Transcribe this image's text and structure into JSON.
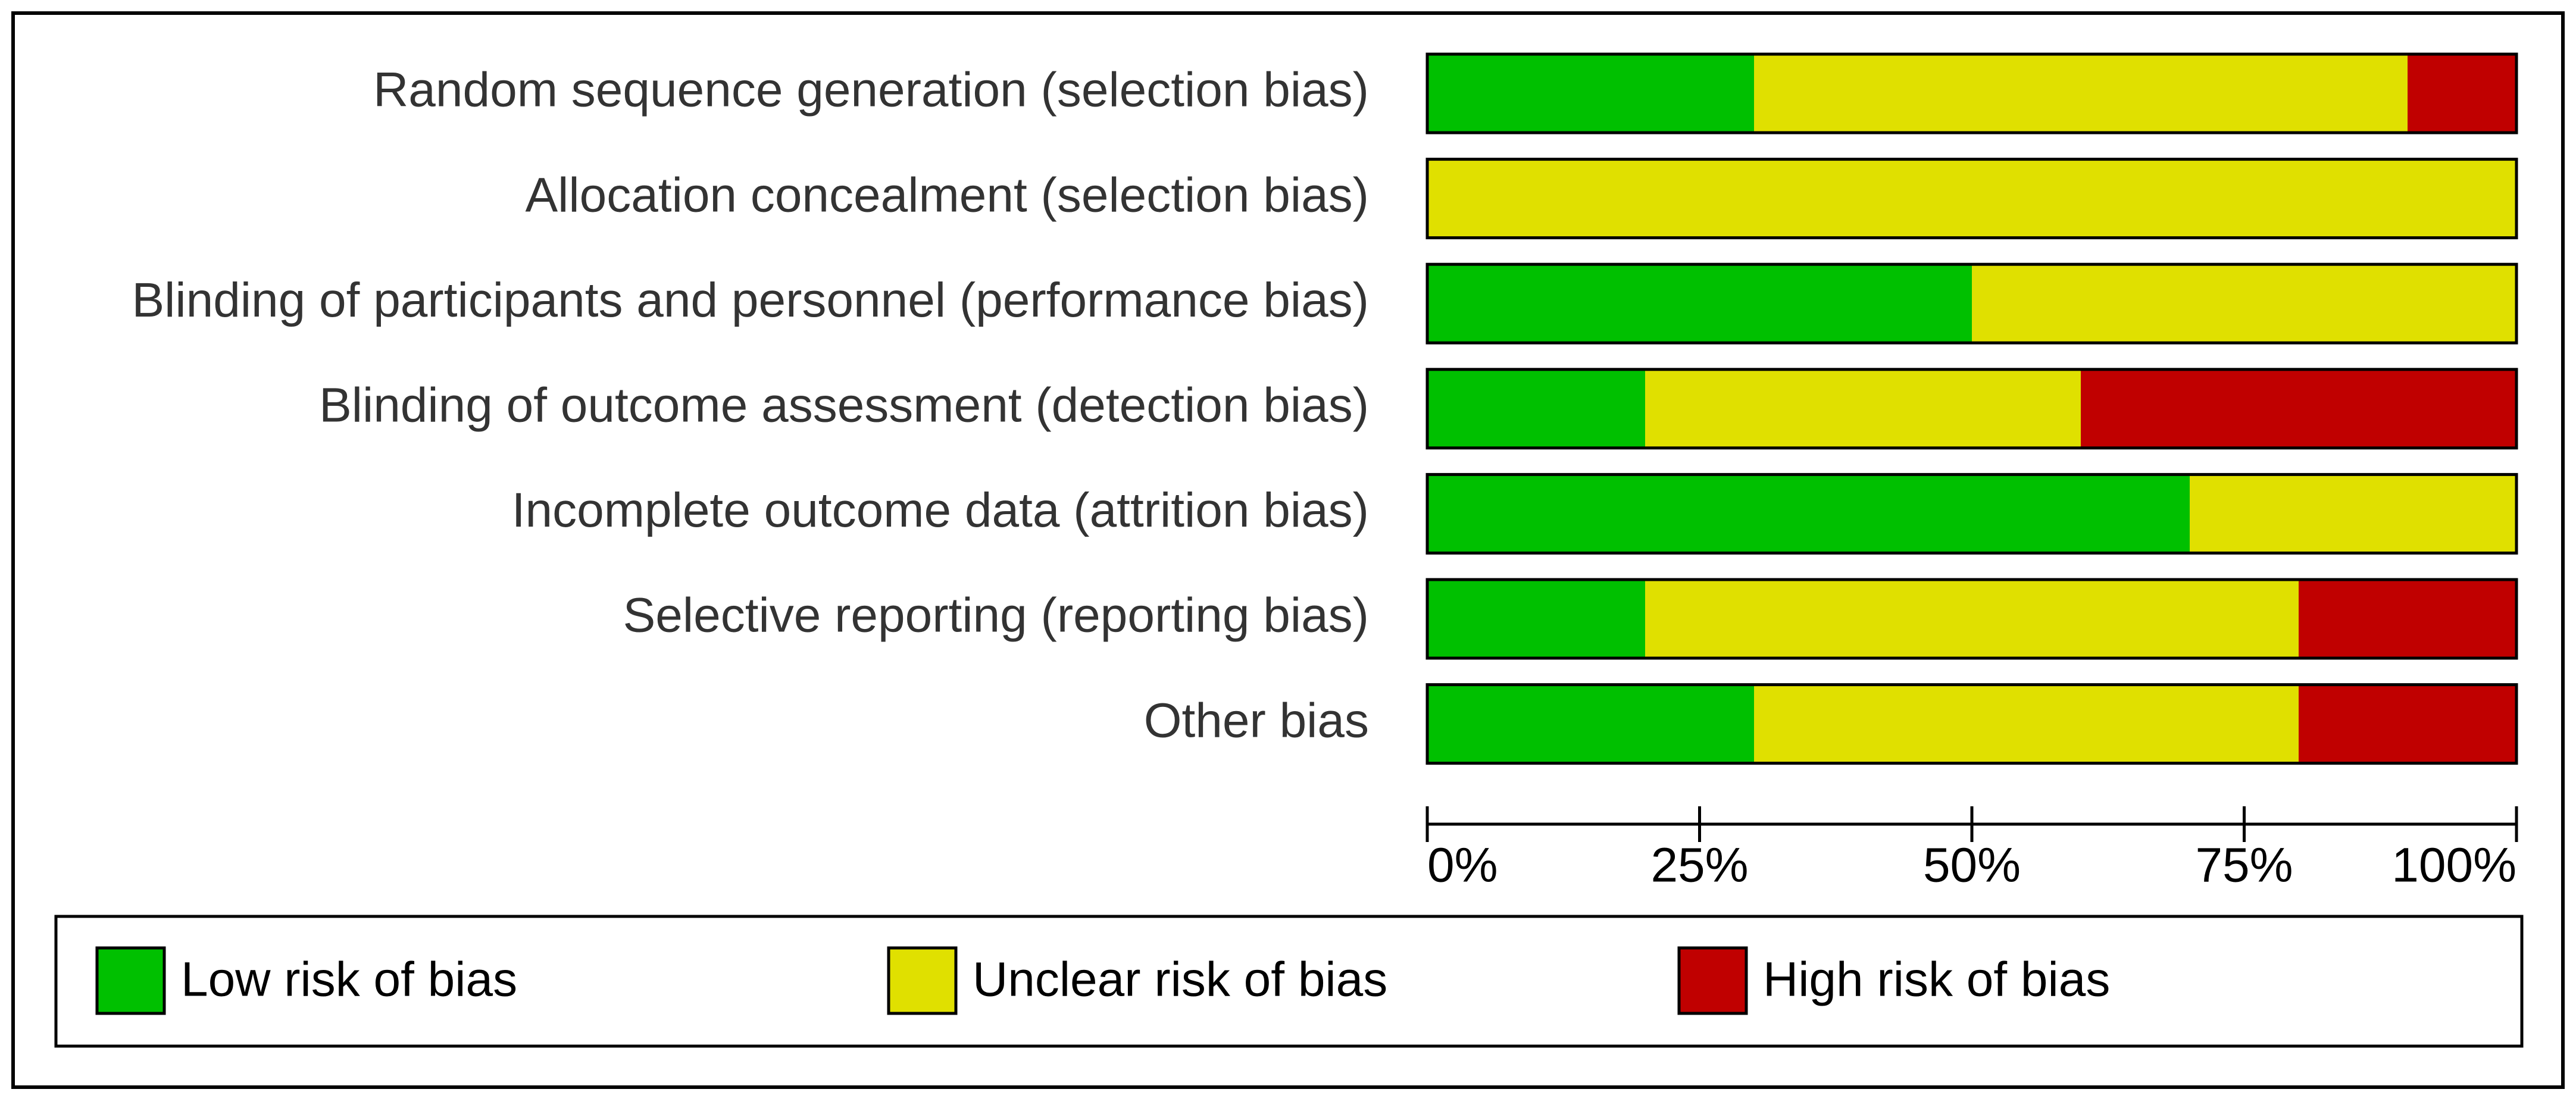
{
  "chart_data": {
    "type": "stacked-bar-horizontal",
    "categories": [
      "Random sequence generation (selection bias)",
      "Allocation concealment (selection bias)",
      "Blinding of participants and personnel (performance bias)",
      "Blinding of outcome assessment (detection bias)",
      "Incomplete outcome data (attrition bias)",
      "Selective reporting (reporting bias)",
      "Other bias"
    ],
    "series": [
      {
        "name": "Low risk of bias",
        "color": "#00c000",
        "values": [
          30,
          0,
          50,
          20,
          70,
          20,
          30
        ]
      },
      {
        "name": "Unclear risk of bias",
        "color": "#e0e000",
        "values": [
          60,
          100,
          50,
          40,
          30,
          60,
          50
        ]
      },
      {
        "name": "High risk of bias",
        "color": "#c00000",
        "values": [
          10,
          0,
          0,
          40,
          0,
          20,
          20
        ]
      }
    ],
    "xlim": [
      0,
      100
    ],
    "xticks": [
      {
        "value": 0,
        "label": "0%"
      },
      {
        "value": 25,
        "label": "25%"
      },
      {
        "value": 50,
        "label": "50%"
      },
      {
        "value": 75,
        "label": "75%"
      },
      {
        "value": 100,
        "label": "100%"
      }
    ],
    "legend": "bottom"
  }
}
